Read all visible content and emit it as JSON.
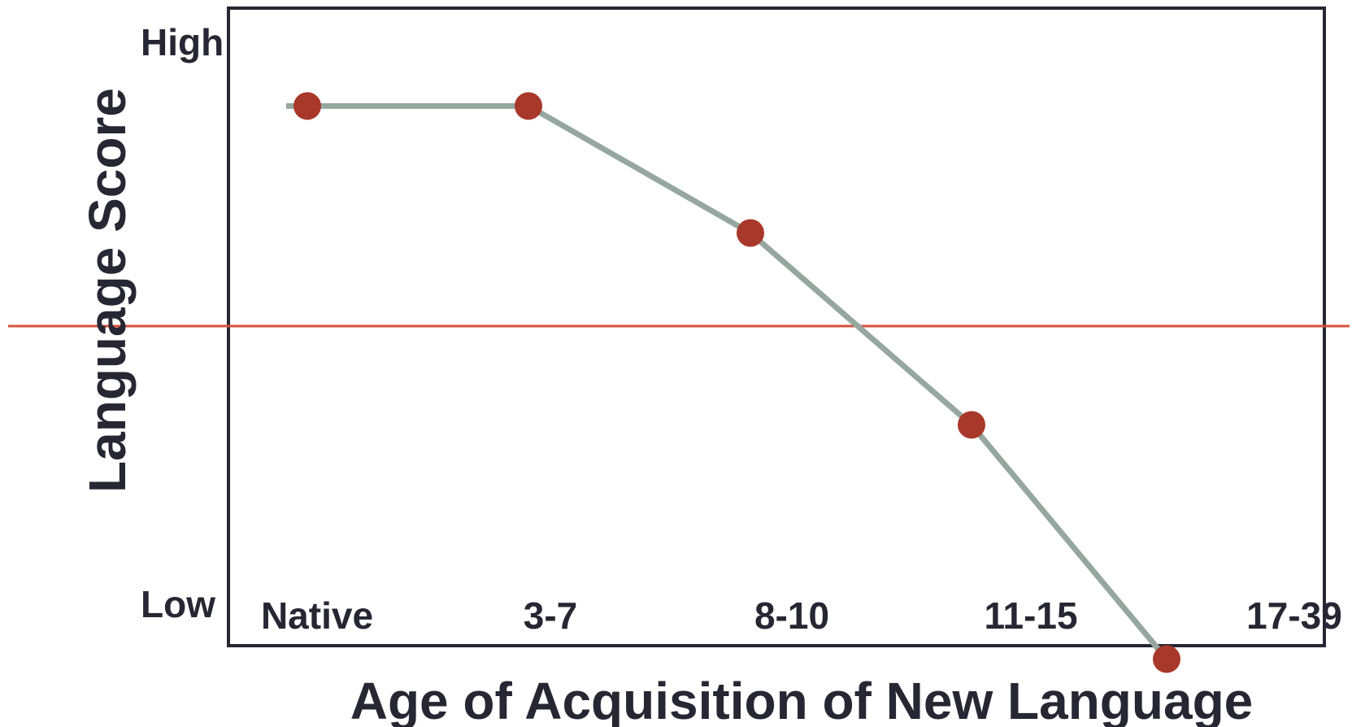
{
  "chart_data": {
    "type": "line",
    "xlabel": "Age of Acquisition of New Language",
    "ylabel": "Language Score",
    "y_tick_labels": {
      "high": "High",
      "low": "Low"
    },
    "categories": [
      "Native",
      "3-7",
      "8-10",
      "11-15",
      "17-39"
    ],
    "ylim": [
      0,
      100
    ],
    "series": [
      {
        "values": [
          89,
          89,
          66.5,
          32.5,
          -9
        ]
      }
    ],
    "reference_line": {
      "y": 50
    },
    "grid": false,
    "legend": "none",
    "colors": {
      "frame": "#272733",
      "line": "#95a79e",
      "marker": "#a8382a",
      "reference_line": "#d5513f",
      "text": "#272733"
    }
  }
}
